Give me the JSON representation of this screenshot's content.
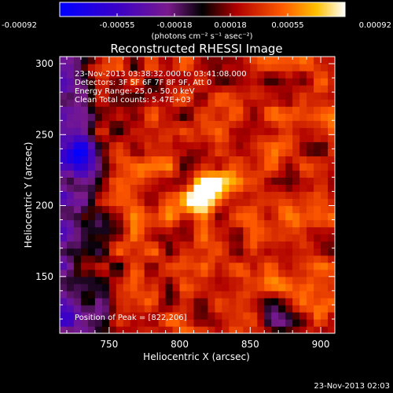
{
  "chart_data": {
    "type": "heatmap",
    "title": "Reconstructed RHESSI Image",
    "xlabel": "Heliocentric X (arcsec)",
    "ylabel": "Heliocentric Y (arcsec)",
    "xlim": [
      715,
      910
    ],
    "ylim": [
      110,
      305
    ],
    "x_ticks": [
      750,
      800,
      850,
      900
    ],
    "y_ticks": [
      150,
      200,
      250,
      300
    ],
    "colorbar": {
      "ticks": [
        "-0.00092",
        "-0.00055",
        "-0.00018",
        "0.00018",
        "0.00055",
        "0.00092"
      ],
      "unit_label": "(photons cm⁻² s⁻¹ asec⁻²)",
      "range": [
        -0.00092,
        0.00092
      ]
    },
    "annotations": [
      "23-Nov-2013 03:38:32.000 to 03:41:08.000",
      "Detectors: 3F 5F 6F 7F 8F 9F, Att 0",
      "Energy Range: 25.0 - 50.0 keV",
      "Clean     Total counts: 5.47E+03"
    ],
    "peak_label": "Position of Peak = [822,206]",
    "peak": [
      822,
      206
    ],
    "footer_timestamp": "23-Nov-2013 02:03",
    "features": [
      {
        "x": 818,
        "y": 210,
        "value": 0.00092
      },
      {
        "x": 730,
        "y": 236,
        "value": -0.0007
      },
      {
        "x": 870,
        "y": 120,
        "value": -0.0005
      },
      {
        "x": 745,
        "y": 125,
        "value": -0.0004
      }
    ]
  }
}
